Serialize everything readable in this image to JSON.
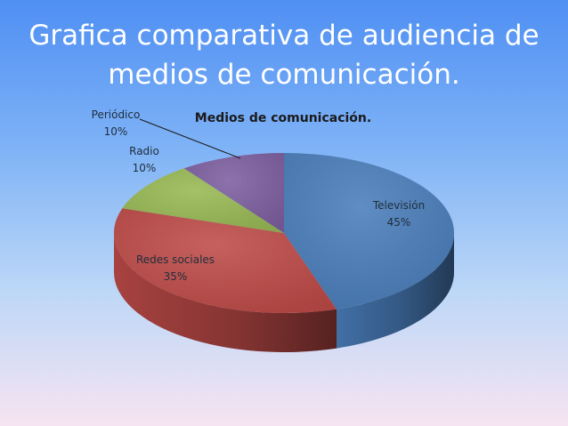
{
  "slide": {
    "title_line1": "Grafica comparativa de audiencia de",
    "title_line2": "medios de comunicación."
  },
  "chart_data": {
    "type": "pie",
    "title": "Medios de comunicación.",
    "categories": [
      "Televisión",
      "Redes sociales",
      "Radio",
      "Periódico"
    ],
    "values": [
      45,
      35,
      10,
      10
    ],
    "labels": [
      "45%",
      "35%",
      "10%",
      "10%"
    ],
    "colors": [
      "#4a7ebb",
      "#be4b48",
      "#98b954",
      "#7d5fa0"
    ],
    "style": "3d"
  }
}
